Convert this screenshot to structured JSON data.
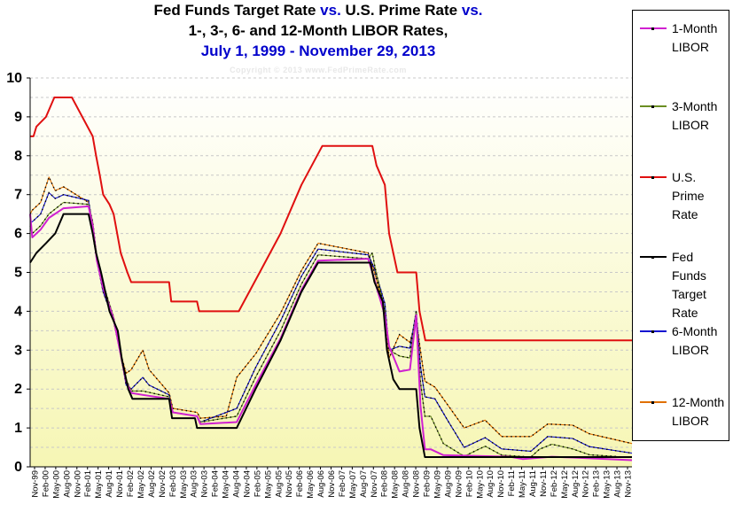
{
  "titles": {
    "line1_a": "Fed Funds Target Rate ",
    "line1_b": "vs.",
    "line1_c": " U.S. Prime Rate ",
    "line1_d": "vs.",
    "line2": "1-, 3-, 6- and 12-Month LIBOR Rates,",
    "line3": "July 1, 1999 - November 29, 2013"
  },
  "copyright": "Copyright  ©  2013 www.FedPrimeRate.com",
  "legend": [
    {
      "lines": [
        "1-Month",
        "LIBOR"
      ],
      "color": "#d020d0"
    },
    {
      "lines": [
        "3-Month",
        "LIBOR"
      ],
      "color": "#6b8e23"
    },
    {
      "lines": [
        "U.S.",
        "Prime",
        "Rate"
      ],
      "color": "#e01010"
    },
    {
      "lines": [
        "Fed",
        "Funds",
        "Target",
        "Rate"
      ],
      "color": "#000000"
    },
    {
      "lines": [
        "6-Month",
        "LIBOR"
      ],
      "color": "#1010d0"
    },
    {
      "lines": [
        "12-Month",
        "LIBOR"
      ],
      "color": "#e07000"
    }
  ],
  "chart_data": {
    "type": "line",
    "title": "Fed Funds Target Rate vs. U.S. Prime Rate vs. 1-, 3-, 6- and 12-Month LIBOR Rates, July 1, 1999 - November 29, 2013",
    "xlabel": "",
    "ylabel": "",
    "ylim": [
      0,
      10
    ],
    "yticks": [
      "0",
      "1",
      "2",
      "3",
      "4",
      "5",
      "6",
      "7",
      "8",
      "9",
      "10"
    ],
    "x_labels": [
      "Nov-99",
      "Feb-00",
      "May-00",
      "Aug-00",
      "Nov-00",
      "Feb-01",
      "May-01",
      "Aug-01",
      "Nov-01",
      "Feb-02",
      "May-02",
      "Aug-02",
      "Nov-02",
      "Feb-03",
      "May-03",
      "Aug-03",
      "Nov-03",
      "Feb-04",
      "May-04",
      "Aug-04",
      "Nov-04",
      "Feb-05",
      "May-05",
      "Aug-05",
      "Nov-05",
      "Feb-06",
      "May-06",
      "Aug-06",
      "Nov-06",
      "Feb-07",
      "May-07",
      "Aug-07",
      "Nov-07",
      "Feb-08",
      "May-08",
      "Aug-08",
      "Nov-08",
      "Feb-09",
      "May-09",
      "Aug-09",
      "Nov-09",
      "Feb-10",
      "May-10",
      "Aug-10",
      "Nov-10",
      "Feb-11",
      "May-11",
      "Aug-11",
      "Nov-11",
      "Feb-12",
      "May-12",
      "Aug-12",
      "Nov-12",
      "Feb-13",
      "May-13",
      "Aug-13",
      "Nov-13"
    ],
    "x_range": [
      1999.5,
      2013.92
    ],
    "grid": true,
    "legend_position": "right",
    "series": [
      {
        "name": "U.S. Prime Rate",
        "color": "#e01010",
        "dotted": false,
        "points": [
          [
            1999.5,
            8.5
          ],
          [
            1999.58,
            8.5
          ],
          [
            1999.65,
            8.75
          ],
          [
            1999.88,
            9.0
          ],
          [
            2000.08,
            9.5
          ],
          [
            2000.5,
            9.5
          ],
          [
            2001.0,
            8.5
          ],
          [
            2001.08,
            8.0
          ],
          [
            2001.17,
            7.5
          ],
          [
            2001.25,
            7.0
          ],
          [
            2001.4,
            6.75
          ],
          [
            2001.5,
            6.5
          ],
          [
            2001.67,
            5.5
          ],
          [
            2001.83,
            5.0
          ],
          [
            2001.92,
            4.75
          ],
          [
            2002.83,
            4.75
          ],
          [
            2002.88,
            4.25
          ],
          [
            2003.5,
            4.25
          ],
          [
            2003.55,
            4.0
          ],
          [
            2004.5,
            4.0
          ],
          [
            2005.0,
            5.0
          ],
          [
            2005.5,
            6.0
          ],
          [
            2006.0,
            7.25
          ],
          [
            2006.5,
            8.25
          ],
          [
            2007.7,
            8.25
          ],
          [
            2007.8,
            7.75
          ],
          [
            2008.0,
            7.25
          ],
          [
            2008.1,
            6.0
          ],
          [
            2008.3,
            5.0
          ],
          [
            2008.75,
            5.0
          ],
          [
            2008.83,
            4.0
          ],
          [
            2008.97,
            3.25
          ],
          [
            2013.92,
            3.25
          ]
        ]
      },
      {
        "name": "Fed Funds Target Rate",
        "color": "#000000",
        "dotted": false,
        "points": [
          [
            1999.5,
            5.25
          ],
          [
            1999.65,
            5.5
          ],
          [
            1999.88,
            5.75
          ],
          [
            2000.1,
            6.0
          ],
          [
            2000.3,
            6.5
          ],
          [
            2000.9,
            6.5
          ],
          [
            2001.0,
            6.0
          ],
          [
            2001.08,
            5.5
          ],
          [
            2001.2,
            5.0
          ],
          [
            2001.3,
            4.5
          ],
          [
            2001.4,
            4.0
          ],
          [
            2001.5,
            3.75
          ],
          [
            2001.6,
            3.5
          ],
          [
            2001.7,
            2.75
          ],
          [
            2001.85,
            2.0
          ],
          [
            2001.95,
            1.75
          ],
          [
            2002.83,
            1.75
          ],
          [
            2002.9,
            1.25
          ],
          [
            2003.45,
            1.25
          ],
          [
            2003.5,
            1.0
          ],
          [
            2004.45,
            1.0
          ],
          [
            2004.9,
            2.0
          ],
          [
            2005.5,
            3.25
          ],
          [
            2006.0,
            4.5
          ],
          [
            2006.4,
            5.25
          ],
          [
            2007.65,
            5.25
          ],
          [
            2007.75,
            4.75
          ],
          [
            2007.95,
            4.25
          ],
          [
            2008.05,
            3.0
          ],
          [
            2008.2,
            2.25
          ],
          [
            2008.35,
            2.0
          ],
          [
            2008.75,
            2.0
          ],
          [
            2008.83,
            1.0
          ],
          [
            2008.96,
            0.25
          ],
          [
            2013.92,
            0.25
          ]
        ]
      },
      {
        "name": "1-Month LIBOR",
        "color": "#d020d0",
        "dotted": false,
        "points": [
          [
            1999.5,
            6.5
          ],
          [
            1999.55,
            5.9
          ],
          [
            1999.75,
            6.1
          ],
          [
            1999.95,
            6.4
          ],
          [
            2000.3,
            6.65
          ],
          [
            2000.9,
            6.7
          ],
          [
            2001.0,
            6.2
          ],
          [
            2001.1,
            5.3
          ],
          [
            2001.25,
            4.6
          ],
          [
            2001.5,
            3.8
          ],
          [
            2001.65,
            3.0
          ],
          [
            2001.8,
            2.2
          ],
          [
            2001.92,
            1.9
          ],
          [
            2002.2,
            1.85
          ],
          [
            2002.83,
            1.75
          ],
          [
            2002.92,
            1.4
          ],
          [
            2003.5,
            1.3
          ],
          [
            2003.58,
            1.1
          ],
          [
            2004.45,
            1.15
          ],
          [
            2004.9,
            2.1
          ],
          [
            2005.5,
            3.3
          ],
          [
            2006.0,
            4.55
          ],
          [
            2006.4,
            5.3
          ],
          [
            2007.6,
            5.35
          ],
          [
            2007.7,
            5.0
          ],
          [
            2007.75,
            4.8
          ],
          [
            2008.0,
            3.9
          ],
          [
            2008.1,
            3.1
          ],
          [
            2008.35,
            2.45
          ],
          [
            2008.6,
            2.5
          ],
          [
            2008.75,
            3.9
          ],
          [
            2008.85,
            1.6
          ],
          [
            2008.96,
            0.45
          ],
          [
            2009.1,
            0.45
          ],
          [
            2009.4,
            0.3
          ],
          [
            2011.0,
            0.26
          ],
          [
            2011.3,
            0.2
          ],
          [
            2012.0,
            0.26
          ],
          [
            2012.5,
            0.24
          ],
          [
            2013.92,
            0.17
          ]
        ]
      },
      {
        "name": "3-Month LIBOR",
        "color": "#6b8e23",
        "dotted": true,
        "points": [
          [
            1999.5,
            6.2
          ],
          [
            1999.55,
            6.0
          ],
          [
            1999.75,
            6.2
          ],
          [
            1999.95,
            6.5
          ],
          [
            2000.3,
            6.8
          ],
          [
            2000.9,
            6.75
          ],
          [
            2001.0,
            6.3
          ],
          [
            2001.1,
            5.4
          ],
          [
            2001.25,
            4.7
          ],
          [
            2001.5,
            3.85
          ],
          [
            2001.65,
            3.05
          ],
          [
            2001.8,
            2.25
          ],
          [
            2001.92,
            1.95
          ],
          [
            2002.2,
            1.95
          ],
          [
            2002.83,
            1.8
          ],
          [
            2002.92,
            1.4
          ],
          [
            2003.5,
            1.3
          ],
          [
            2003.58,
            1.15
          ],
          [
            2004.45,
            1.3
          ],
          [
            2004.9,
            2.3
          ],
          [
            2005.5,
            3.5
          ],
          [
            2006.0,
            4.7
          ],
          [
            2006.4,
            5.45
          ],
          [
            2007.6,
            5.35
          ],
          [
            2007.7,
            5.5
          ],
          [
            2007.75,
            5.2
          ],
          [
            2008.0,
            4.0
          ],
          [
            2008.1,
            3.0
          ],
          [
            2008.35,
            2.85
          ],
          [
            2008.6,
            2.8
          ],
          [
            2008.75,
            4.0
          ],
          [
            2008.85,
            2.2
          ],
          [
            2008.96,
            1.3
          ],
          [
            2009.1,
            1.3
          ],
          [
            2009.4,
            0.6
          ],
          [
            2009.9,
            0.27
          ],
          [
            2010.4,
            0.53
          ],
          [
            2010.8,
            0.3
          ],
          [
            2011.5,
            0.25
          ],
          [
            2011.7,
            0.45
          ],
          [
            2012.0,
            0.58
          ],
          [
            2012.5,
            0.46
          ],
          [
            2012.9,
            0.31
          ],
          [
            2013.92,
            0.24
          ]
        ]
      },
      {
        "name": "6-Month LIBOR",
        "color": "#1010d0",
        "dotted": true,
        "points": [
          [
            1999.5,
            6.3
          ],
          [
            1999.55,
            6.3
          ],
          [
            1999.75,
            6.5
          ],
          [
            1999.95,
            7.05
          ],
          [
            2000.1,
            6.9
          ],
          [
            2000.3,
            7.0
          ],
          [
            2000.9,
            6.85
          ],
          [
            2001.0,
            6.2
          ],
          [
            2001.1,
            5.3
          ],
          [
            2001.25,
            4.5
          ],
          [
            2001.5,
            3.75
          ],
          [
            2001.65,
            3.0
          ],
          [
            2001.8,
            2.1
          ],
          [
            2001.92,
            2.0
          ],
          [
            2002.2,
            2.3
          ],
          [
            2002.35,
            2.1
          ],
          [
            2002.83,
            1.85
          ],
          [
            2002.92,
            1.4
          ],
          [
            2003.5,
            1.3
          ],
          [
            2003.58,
            1.15
          ],
          [
            2004.45,
            1.5
          ],
          [
            2004.9,
            2.55
          ],
          [
            2005.5,
            3.75
          ],
          [
            2006.0,
            4.9
          ],
          [
            2006.4,
            5.6
          ],
          [
            2007.6,
            5.45
          ],
          [
            2007.75,
            5.1
          ],
          [
            2008.0,
            4.2
          ],
          [
            2008.1,
            3.0
          ],
          [
            2008.35,
            3.1
          ],
          [
            2008.6,
            3.05
          ],
          [
            2008.75,
            4.0
          ],
          [
            2008.85,
            2.6
          ],
          [
            2008.96,
            1.8
          ],
          [
            2009.2,
            1.75
          ],
          [
            2009.5,
            1.2
          ],
          [
            2009.9,
            0.5
          ],
          [
            2010.4,
            0.75
          ],
          [
            2010.8,
            0.46
          ],
          [
            2011.5,
            0.4
          ],
          [
            2011.9,
            0.78
          ],
          [
            2012.5,
            0.73
          ],
          [
            2012.9,
            0.52
          ],
          [
            2013.92,
            0.35
          ]
        ]
      },
      {
        "name": "12-Month LIBOR",
        "color": "#e07000",
        "dotted": true,
        "points": [
          [
            1999.5,
            6.5
          ],
          [
            1999.55,
            6.6
          ],
          [
            1999.75,
            6.8
          ],
          [
            1999.95,
            7.45
          ],
          [
            2000.1,
            7.1
          ],
          [
            2000.3,
            7.2
          ],
          [
            2000.9,
            6.8
          ],
          [
            2001.0,
            6.0
          ],
          [
            2001.1,
            5.3
          ],
          [
            2001.25,
            4.5
          ],
          [
            2001.5,
            3.75
          ],
          [
            2001.65,
            3.0
          ],
          [
            2001.8,
            2.4
          ],
          [
            2001.92,
            2.5
          ],
          [
            2002.2,
            3.0
          ],
          [
            2002.35,
            2.5
          ],
          [
            2002.83,
            1.9
          ],
          [
            2002.92,
            1.5
          ],
          [
            2003.5,
            1.4
          ],
          [
            2003.58,
            1.25
          ],
          [
            2004.2,
            1.3
          ],
          [
            2004.45,
            2.3
          ],
          [
            2004.9,
            2.9
          ],
          [
            2005.5,
            3.95
          ],
          [
            2006.0,
            5.05
          ],
          [
            2006.4,
            5.75
          ],
          [
            2007.6,
            5.5
          ],
          [
            2007.75,
            5.0
          ],
          [
            2008.0,
            4.0
          ],
          [
            2008.1,
            2.8
          ],
          [
            2008.35,
            3.4
          ],
          [
            2008.6,
            3.2
          ],
          [
            2008.75,
            3.8
          ],
          [
            2008.85,
            3.0
          ],
          [
            2008.96,
            2.2
          ],
          [
            2009.2,
            2.05
          ],
          [
            2009.5,
            1.6
          ],
          [
            2009.9,
            1.0
          ],
          [
            2010.4,
            1.2
          ],
          [
            2010.8,
            0.78
          ],
          [
            2011.5,
            0.78
          ],
          [
            2011.9,
            1.1
          ],
          [
            2012.5,
            1.07
          ],
          [
            2012.9,
            0.85
          ],
          [
            2013.92,
            0.6
          ]
        ]
      }
    ]
  }
}
